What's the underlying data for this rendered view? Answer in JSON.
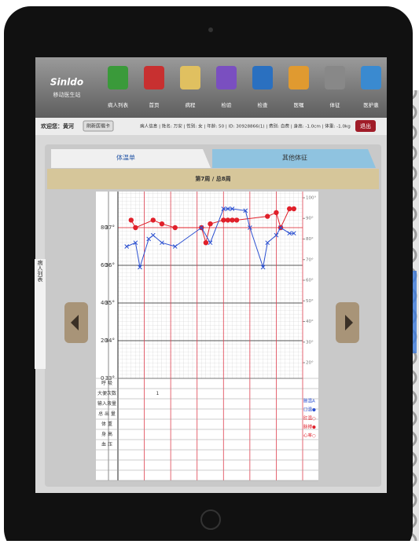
{
  "header": {
    "logo": "Sinldo",
    "subtitle": "移动医生站",
    "nav": [
      "病人列表",
      "首页",
      "病程",
      "检验",
      "检查",
      "医嘱",
      "体征",
      "医护患"
    ]
  },
  "info_bar": {
    "welcome": "欢迎您：黄河",
    "refresh": "刷新医嘱卡",
    "patient": "病人信息 | 姓名: 万安 | 性别: 女 | 年龄: 50 | ID: 30928866(1) | 费别: 自费 | 身高: -1.0cm | 体重: -1.0kg",
    "logout": "退出"
  },
  "tabs": [
    "体温单",
    "其他体征"
  ],
  "week": "第7周 / 总8周",
  "side_tab": "病人列表",
  "chart_data": {
    "type": "line",
    "xlim": [
      0,
      42
    ],
    "xticks": [
      0,
      6,
      12,
      18,
      24,
      30,
      36,
      42
    ],
    "ylim": [
      33,
      38
    ],
    "yticks": [
      {
        "value": 33,
        "label": "33°"
      },
      {
        "value": 34,
        "label": "34°"
      },
      {
        "value": 35,
        "label": "35°"
      },
      {
        "value": 36,
        "label": "36°"
      },
      {
        "value": 37,
        "label": "37°"
      }
    ],
    "y2lim": [
      0,
      100
    ],
    "y2ticks": [
      0,
      20,
      40,
      60,
      80
    ],
    "y3lim": [
      12.4,
      103.8
    ],
    "y3ticks": [
      {
        "value": 20,
        "label": "20°"
      },
      {
        "value": 30,
        "label": "30°"
      },
      {
        "value": 40,
        "label": "40°"
      },
      {
        "value": 50,
        "label": "50°"
      },
      {
        "value": 60,
        "label": "60°"
      },
      {
        "value": 70,
        "label": "70°"
      },
      {
        "value": 80,
        "label": "80°"
      },
      {
        "value": 90,
        "label": "90°"
      },
      {
        "value": 100,
        "label": "100°"
      }
    ],
    "series": [
      {
        "color": "#e0202a",
        "axis": "y",
        "marker": "dot",
        "x": [
          3,
          4,
          8,
          10,
          13,
          19,
          20,
          21,
          24,
          25,
          26,
          27,
          34,
          36,
          37,
          39,
          40
        ],
        "values": [
          37.2,
          37.0,
          37.2,
          37.1,
          37.0,
          37.0,
          36.6,
          37.1,
          37.2,
          37.2,
          37.2,
          37.2,
          37.3,
          37.4,
          37.0,
          37.5,
          37.5
        ]
      },
      {
        "color": "#2a4fd0",
        "axis": "y2",
        "marker": "cross",
        "x": [
          2,
          4,
          5,
          7,
          8,
          10,
          13,
          19,
          21,
          24,
          25,
          26,
          29,
          30,
          33,
          34,
          36,
          37,
          39,
          40
        ],
        "values": [
          70,
          72,
          59,
          74,
          76,
          72,
          70,
          80,
          72,
          90,
          90,
          90,
          89,
          80,
          59,
          72,
          76,
          80,
          77,
          77
        ]
      }
    ]
  },
  "table": {
    "rows": [
      {
        "label": "呼 吸"
      },
      {
        "label": "大便次数",
        "values": [
          null,
          1,
          null,
          null,
          null,
          null,
          null
        ]
      },
      {
        "label": "输入液量"
      },
      {
        "label": "总 出 量"
      },
      {
        "label": "体 重"
      },
      {
        "label": "身 高"
      },
      {
        "label": "血 压"
      }
    ]
  },
  "legend": [
    {
      "text": "腋温A",
      "color": "#2a4fd0"
    },
    {
      "text": "口温●",
      "color": "#2a4fd0"
    },
    {
      "text": "肛温○",
      "color": "#e0202a"
    },
    {
      "text": "脉搏●",
      "color": "#e0202a"
    },
    {
      "text": "心率○",
      "color": "#e0202a"
    }
  ]
}
